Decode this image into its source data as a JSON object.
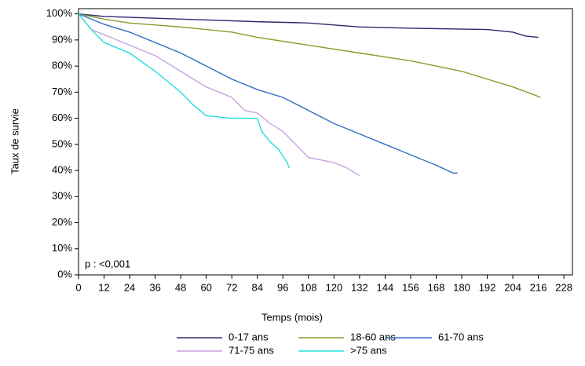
{
  "chart_data": {
    "type": "line",
    "x_label": "Temps (mois)",
    "y_label": "Taux de survie",
    "annotation": "p : <0,001",
    "xlim": [
      0,
      232
    ],
    "ylim": [
      0,
      102
    ],
    "xticks": [
      0,
      12,
      24,
      36,
      48,
      60,
      72,
      84,
      96,
      108,
      120,
      132,
      144,
      156,
      168,
      180,
      192,
      204,
      216,
      228
    ],
    "yticks": [
      {
        "value": 0,
        "label": "0%"
      },
      {
        "value": 10,
        "label": "10%"
      },
      {
        "value": 20,
        "label": "20%"
      },
      {
        "value": 30,
        "label": "30%"
      },
      {
        "value": 40,
        "label": "40%"
      },
      {
        "value": 50,
        "label": "50%"
      },
      {
        "value": 60,
        "label": "60%"
      },
      {
        "value": 70,
        "label": "70%"
      },
      {
        "value": 80,
        "label": "80%"
      },
      {
        "value": 90,
        "label": "90%"
      },
      {
        "value": 100,
        "label": "100%"
      }
    ],
    "series": [
      {
        "name": "0-17 ans",
        "color": "#2b2a6e",
        "x": [
          0,
          12,
          48,
          84,
          108,
          132,
          156,
          192,
          204,
          210,
          216
        ],
        "values": [
          100,
          99,
          98,
          97,
          96.5,
          95,
          94.5,
          94,
          93,
          91.5,
          91
        ]
      },
      {
        "name": "18-60 ans",
        "color": "#8a9a2a",
        "x": [
          0,
          12,
          24,
          48,
          72,
          84,
          108,
          132,
          156,
          180,
          192,
          204,
          214,
          217
        ],
        "values": [
          100,
          98,
          96.5,
          95,
          93,
          91,
          88,
          85,
          82,
          78,
          75,
          72,
          69,
          68
        ]
      },
      {
        "name": "61-70 ans",
        "color": "#2e6fc4",
        "x": [
          0,
          12,
          24,
          36,
          48,
          60,
          72,
          84,
          96,
          108,
          120,
          132,
          144,
          156,
          168,
          176,
          178
        ],
        "values": [
          100,
          96,
          93,
          89,
          85,
          80,
          75,
          71,
          68,
          63,
          58,
          54,
          50,
          46,
          42,
          39,
          39
        ]
      },
      {
        "name": "71-75 ans",
        "color": "#c9a3e0",
        "x": [
          0,
          6,
          12,
          24,
          36,
          48,
          60,
          72,
          78,
          84,
          90,
          96,
          102,
          108,
          120,
          126,
          132
        ],
        "values": [
          100,
          94,
          92,
          88,
          84,
          78,
          72,
          68,
          63,
          62,
          58,
          55,
          50,
          45,
          43,
          41,
          38
        ]
      },
      {
        "name": ">75 ans",
        "color": "#22dede",
        "x": [
          0,
          6,
          12,
          24,
          36,
          48,
          54,
          60,
          72,
          84,
          86,
          90,
          94,
          98,
          99
        ],
        "values": [
          100,
          94,
          89,
          85,
          78,
          70,
          65,
          61,
          60,
          60,
          55,
          51,
          48,
          43,
          41
        ]
      }
    ]
  }
}
